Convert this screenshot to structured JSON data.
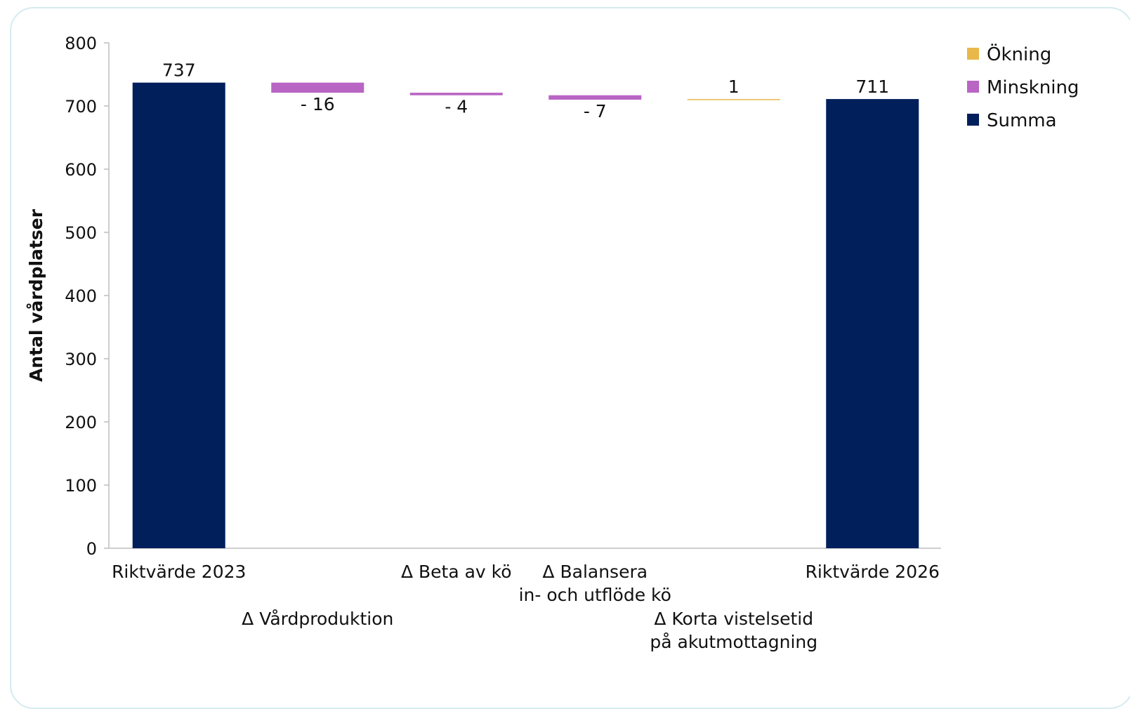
{
  "chart_data": {
    "type": "bar",
    "subtype": "waterfall",
    "title": "",
    "ylabel": "Antal vårdplatser",
    "xlabel": "",
    "ylim": [
      0,
      800
    ],
    "yticks": [
      0,
      100,
      200,
      300,
      400,
      500,
      600,
      700,
      800
    ],
    "grid": false,
    "legend_position": "top-right",
    "legend": [
      {
        "name": "Ökning",
        "color": "#e8b84a"
      },
      {
        "name": "Minskning",
        "color": "#b865c4"
      },
      {
        "name": "Summa",
        "color": "#001f5b"
      }
    ],
    "categories": [
      {
        "lines": [
          "Riktvärde 2023"
        ]
      },
      {
        "lines": [
          "Δ Vårdproduktion"
        ]
      },
      {
        "lines": [
          "Δ Beta av kö"
        ]
      },
      {
        "lines": [
          "Δ Balansera",
          "in- och utflöde kö"
        ]
      },
      {
        "lines": [
          "Δ Korta vistelsetid",
          "på akutmottagning"
        ]
      },
      {
        "lines": [
          "Riktvärde 2026"
        ]
      }
    ],
    "bars": [
      {
        "kind": "total",
        "base": 0,
        "top": 737,
        "label": "737"
      },
      {
        "kind": "decrease",
        "base": 721,
        "top": 737,
        "label": "- 16"
      },
      {
        "kind": "decrease",
        "base": 717,
        "top": 721,
        "label": "- 4"
      },
      {
        "kind": "decrease",
        "base": 710,
        "top": 717,
        "label": "- 7"
      },
      {
        "kind": "increase",
        "base": 710,
        "top": 711,
        "label": "1"
      },
      {
        "kind": "total",
        "base": 0,
        "top": 711,
        "label": "711"
      }
    ]
  }
}
